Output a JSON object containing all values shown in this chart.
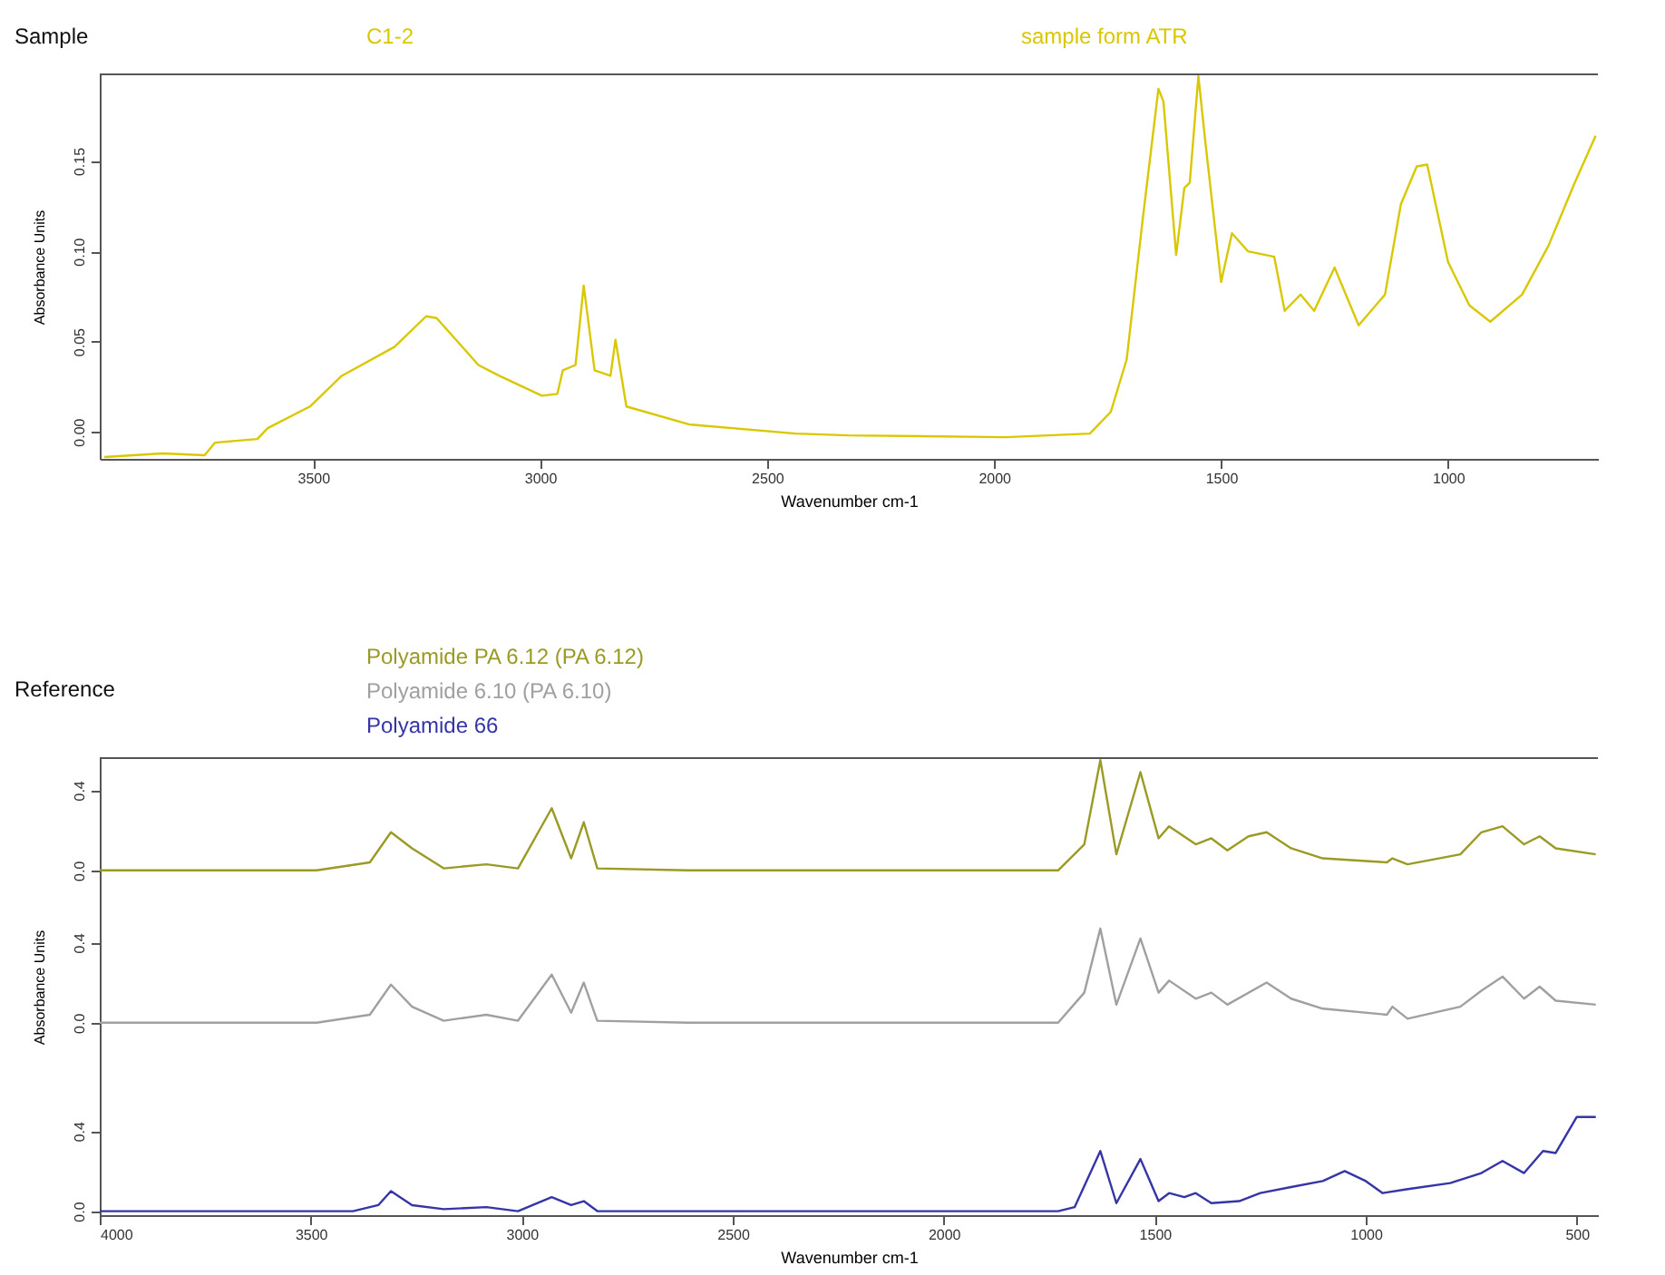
{
  "chart_data": [
    {
      "type": "line",
      "title": "Sample",
      "xlabel": "Wavenumber cm-1",
      "ylabel": "Absorbance Units",
      "annotations": [
        "sample form ATR"
      ],
      "x": [
        3960,
        3832,
        3739,
        3716,
        3623,
        3600,
        3507,
        3437,
        3321,
        3251,
        3228,
        3136,
        3090,
        2996,
        2962,
        2950,
        2922,
        2904,
        2880,
        2845,
        2834,
        2810,
        2671,
        2437,
        2320,
        1975,
        1789,
        1743,
        1708,
        1673,
        1638,
        1627,
        1599,
        1581,
        1569,
        1550,
        1534,
        1500,
        1476,
        1441,
        1383,
        1360,
        1325,
        1295,
        1250,
        1197,
        1139,
        1104,
        1069,
        1046,
        1000,
        953,
        907,
        837,
        779,
        721,
        675
      ],
      "series": [
        {
          "name": "C1-2",
          "color": "#d9c800",
          "values": [
            -0.014,
            -0.012,
            -0.013,
            -0.006,
            -0.004,
            0.002,
            0.014,
            0.031,
            0.047,
            0.064,
            0.063,
            0.037,
            0.031,
            0.02,
            0.021,
            0.034,
            0.037,
            0.081,
            0.034,
            0.031,
            0.051,
            0.014,
            0.004,
            -0.001,
            -0.002,
            -0.003,
            -0.001,
            0.011,
            0.04,
            0.117,
            0.19,
            0.183,
            0.098,
            0.135,
            0.138,
            0.197,
            0.159,
            0.083,
            0.11,
            0.1,
            0.097,
            0.067,
            0.076,
            0.067,
            0.091,
            0.059,
            0.076,
            0.126,
            0.147,
            0.148,
            0.094,
            0.07,
            0.061,
            0.076,
            0.103,
            0.138,
            0.164
          ]
        }
      ],
      "xlim": [
        3970,
        670
      ],
      "xticks": [
        3500,
        3000,
        2500,
        2000,
        1500,
        1000
      ],
      "ylim": [
        -0.015,
        0.198
      ],
      "yticks": [
        {
          "value": 0,
          "label": "0.00"
        },
        {
          "value": 0.05,
          "label": "0.05"
        },
        {
          "value": 0.1,
          "label": "0.10"
        },
        {
          "value": 0.15,
          "label": "0.15"
        }
      ]
    },
    {
      "type": "line",
      "title": "Reference",
      "tick_labels": "y",
      "x": [
        4000,
        3486,
        3360,
        3310,
        3260,
        3185,
        3084,
        3009,
        2929,
        2883,
        2853,
        2821,
        2607,
        1729,
        1667,
        1629,
        1591,
        1534,
        1491,
        1466,
        1403,
        1366,
        1328,
        1278,
        1235,
        1177,
        1102,
        950,
        937,
        901,
        776,
        726,
        676,
        625,
        588,
        550,
        455
      ],
      "series": [
        {
          "name": "Polyamide PA 6.12 (PA 6.12)",
          "color": "#9a9a24",
          "values": [
            0,
            0,
            0.04,
            0.19,
            0.11,
            0.01,
            0.03,
            0.01,
            0.31,
            0.06,
            0.24,
            0.01,
            0,
            0,
            0.13,
            0.55,
            0.08,
            0.49,
            0.16,
            0.22,
            0.13,
            0.16,
            0.1,
            0.17,
            0.19,
            0.11,
            0.06,
            0.04,
            0.06,
            0.03,
            0.08,
            0.19,
            0.22,
            0.13,
            0.17,
            0.11,
            0.08
          ]
        }
      ],
      "xlim": [
        4000,
        450
      ],
      "ylim": [
        -0.2,
        0.56
      ],
      "yticks": [
        {
          "value": 0,
          "label": "0.0"
        },
        {
          "value": 0.4,
          "label": "0.4"
        }
      ]
    },
    {
      "type": "line",
      "ylabel": "Absorbance Units",
      "tick_labels": "y",
      "x": [
        4000,
        3486,
        3360,
        3310,
        3260,
        3185,
        3084,
        3009,
        2929,
        2883,
        2853,
        2821,
        2607,
        1729,
        1667,
        1629,
        1591,
        1534,
        1491,
        1466,
        1403,
        1366,
        1328,
        1235,
        1177,
        1102,
        950,
        937,
        901,
        776,
        726,
        676,
        625,
        588,
        550,
        455
      ],
      "series": [
        {
          "name": "Polyamide 6.10 (PA 6.10)",
          "color": "#a0a0a0",
          "values": [
            0,
            0,
            0.04,
            0.19,
            0.08,
            0.01,
            0.04,
            0.01,
            0.24,
            0.05,
            0.2,
            0.01,
            0,
            0,
            0.15,
            0.47,
            0.09,
            0.42,
            0.15,
            0.21,
            0.12,
            0.15,
            0.09,
            0.2,
            0.12,
            0.07,
            0.04,
            0.08,
            0.02,
            0.08,
            0.16,
            0.23,
            0.12,
            0.18,
            0.11,
            0.09
          ]
        }
      ],
      "xlim": [
        4000,
        450
      ],
      "ylim": [
        -0.2,
        0.56
      ],
      "yticks": [
        {
          "value": 0,
          "label": "0.0"
        },
        {
          "value": 0.4,
          "label": "0.4"
        }
      ]
    },
    {
      "type": "line",
      "xlabel": "Wavenumber cm-1",
      "x": [
        4000,
        3400,
        3340,
        3310,
        3260,
        3185,
        3084,
        3009,
        2929,
        2883,
        2853,
        2821,
        1729,
        1690,
        1629,
        1591,
        1534,
        1491,
        1466,
        1430,
        1403,
        1366,
        1300,
        1250,
        1177,
        1102,
        1050,
        1000,
        960,
        900,
        800,
        726,
        676,
        625,
        580,
        550,
        500,
        455
      ],
      "series": [
        {
          "name": "Polyamide 66",
          "color": "#3535a8",
          "values": [
            0,
            0,
            0.03,
            0.1,
            0.03,
            0.01,
            0.02,
            0,
            0.07,
            0.03,
            0.05,
            0,
            0,
            0.02,
            0.3,
            0.04,
            0.26,
            0.05,
            0.09,
            0.07,
            0.09,
            0.04,
            0.05,
            0.09,
            0.12,
            0.15,
            0.2,
            0.15,
            0.09,
            0.11,
            0.14,
            0.19,
            0.25,
            0.19,
            0.3,
            0.29,
            0.47,
            0.47
          ]
        }
      ],
      "xlim": [
        4000,
        450
      ],
      "xticks": [
        4000,
        3500,
        3000,
        2500,
        2000,
        1500,
        1000,
        500
      ],
      "ylim": [
        -0.02,
        0.74
      ],
      "yticks": [
        {
          "value": 0,
          "label": "0.0"
        },
        {
          "value": 0.4,
          "label": "0.4"
        }
      ]
    }
  ]
}
